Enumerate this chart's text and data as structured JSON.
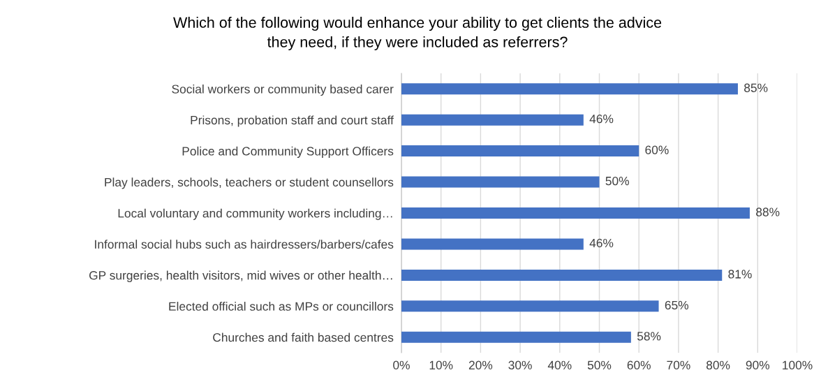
{
  "chart_data": {
    "type": "bar",
    "orientation": "horizontal",
    "title": "Which of the following would enhance your ability to get clients the advice\nthey need, if they were included as referrers?",
    "categories": [
      "Social workers or community based carer",
      "Prisons, probation staff and court staff",
      "Police and Community Support Officers",
      "Play leaders, schools, teachers or student counsellors",
      "Local voluntary and community workers including…",
      "Informal social hubs such as hairdressers/barbers/cafes",
      "GP surgeries, health visitors, mid wives or other health…",
      "Elected official such as MPs or councillors",
      "Churches and faith based centres"
    ],
    "values": [
      85,
      46,
      60,
      50,
      88,
      46,
      81,
      65,
      58
    ],
    "value_labels": [
      "85%",
      "46%",
      "60%",
      "50%",
      "88%",
      "46%",
      "81%",
      "65%",
      "58%"
    ],
    "color": "#4472c4",
    "xlim": [
      0,
      100
    ],
    "xticks": [
      {
        "value": 0,
        "label": "0%"
      },
      {
        "value": 10,
        "label": "10%"
      },
      {
        "value": 20,
        "label": "20%"
      },
      {
        "value": 30,
        "label": "30%"
      },
      {
        "value": 40,
        "label": "40%"
      },
      {
        "value": 50,
        "label": "50%"
      },
      {
        "value": 60,
        "label": "60%"
      },
      {
        "value": 70,
        "label": "70%"
      },
      {
        "value": 80,
        "label": "80%"
      },
      {
        "value": 90,
        "label": "90%"
      },
      {
        "value": 100,
        "label": "100%"
      }
    ],
    "grid": "x",
    "legend": false
  }
}
